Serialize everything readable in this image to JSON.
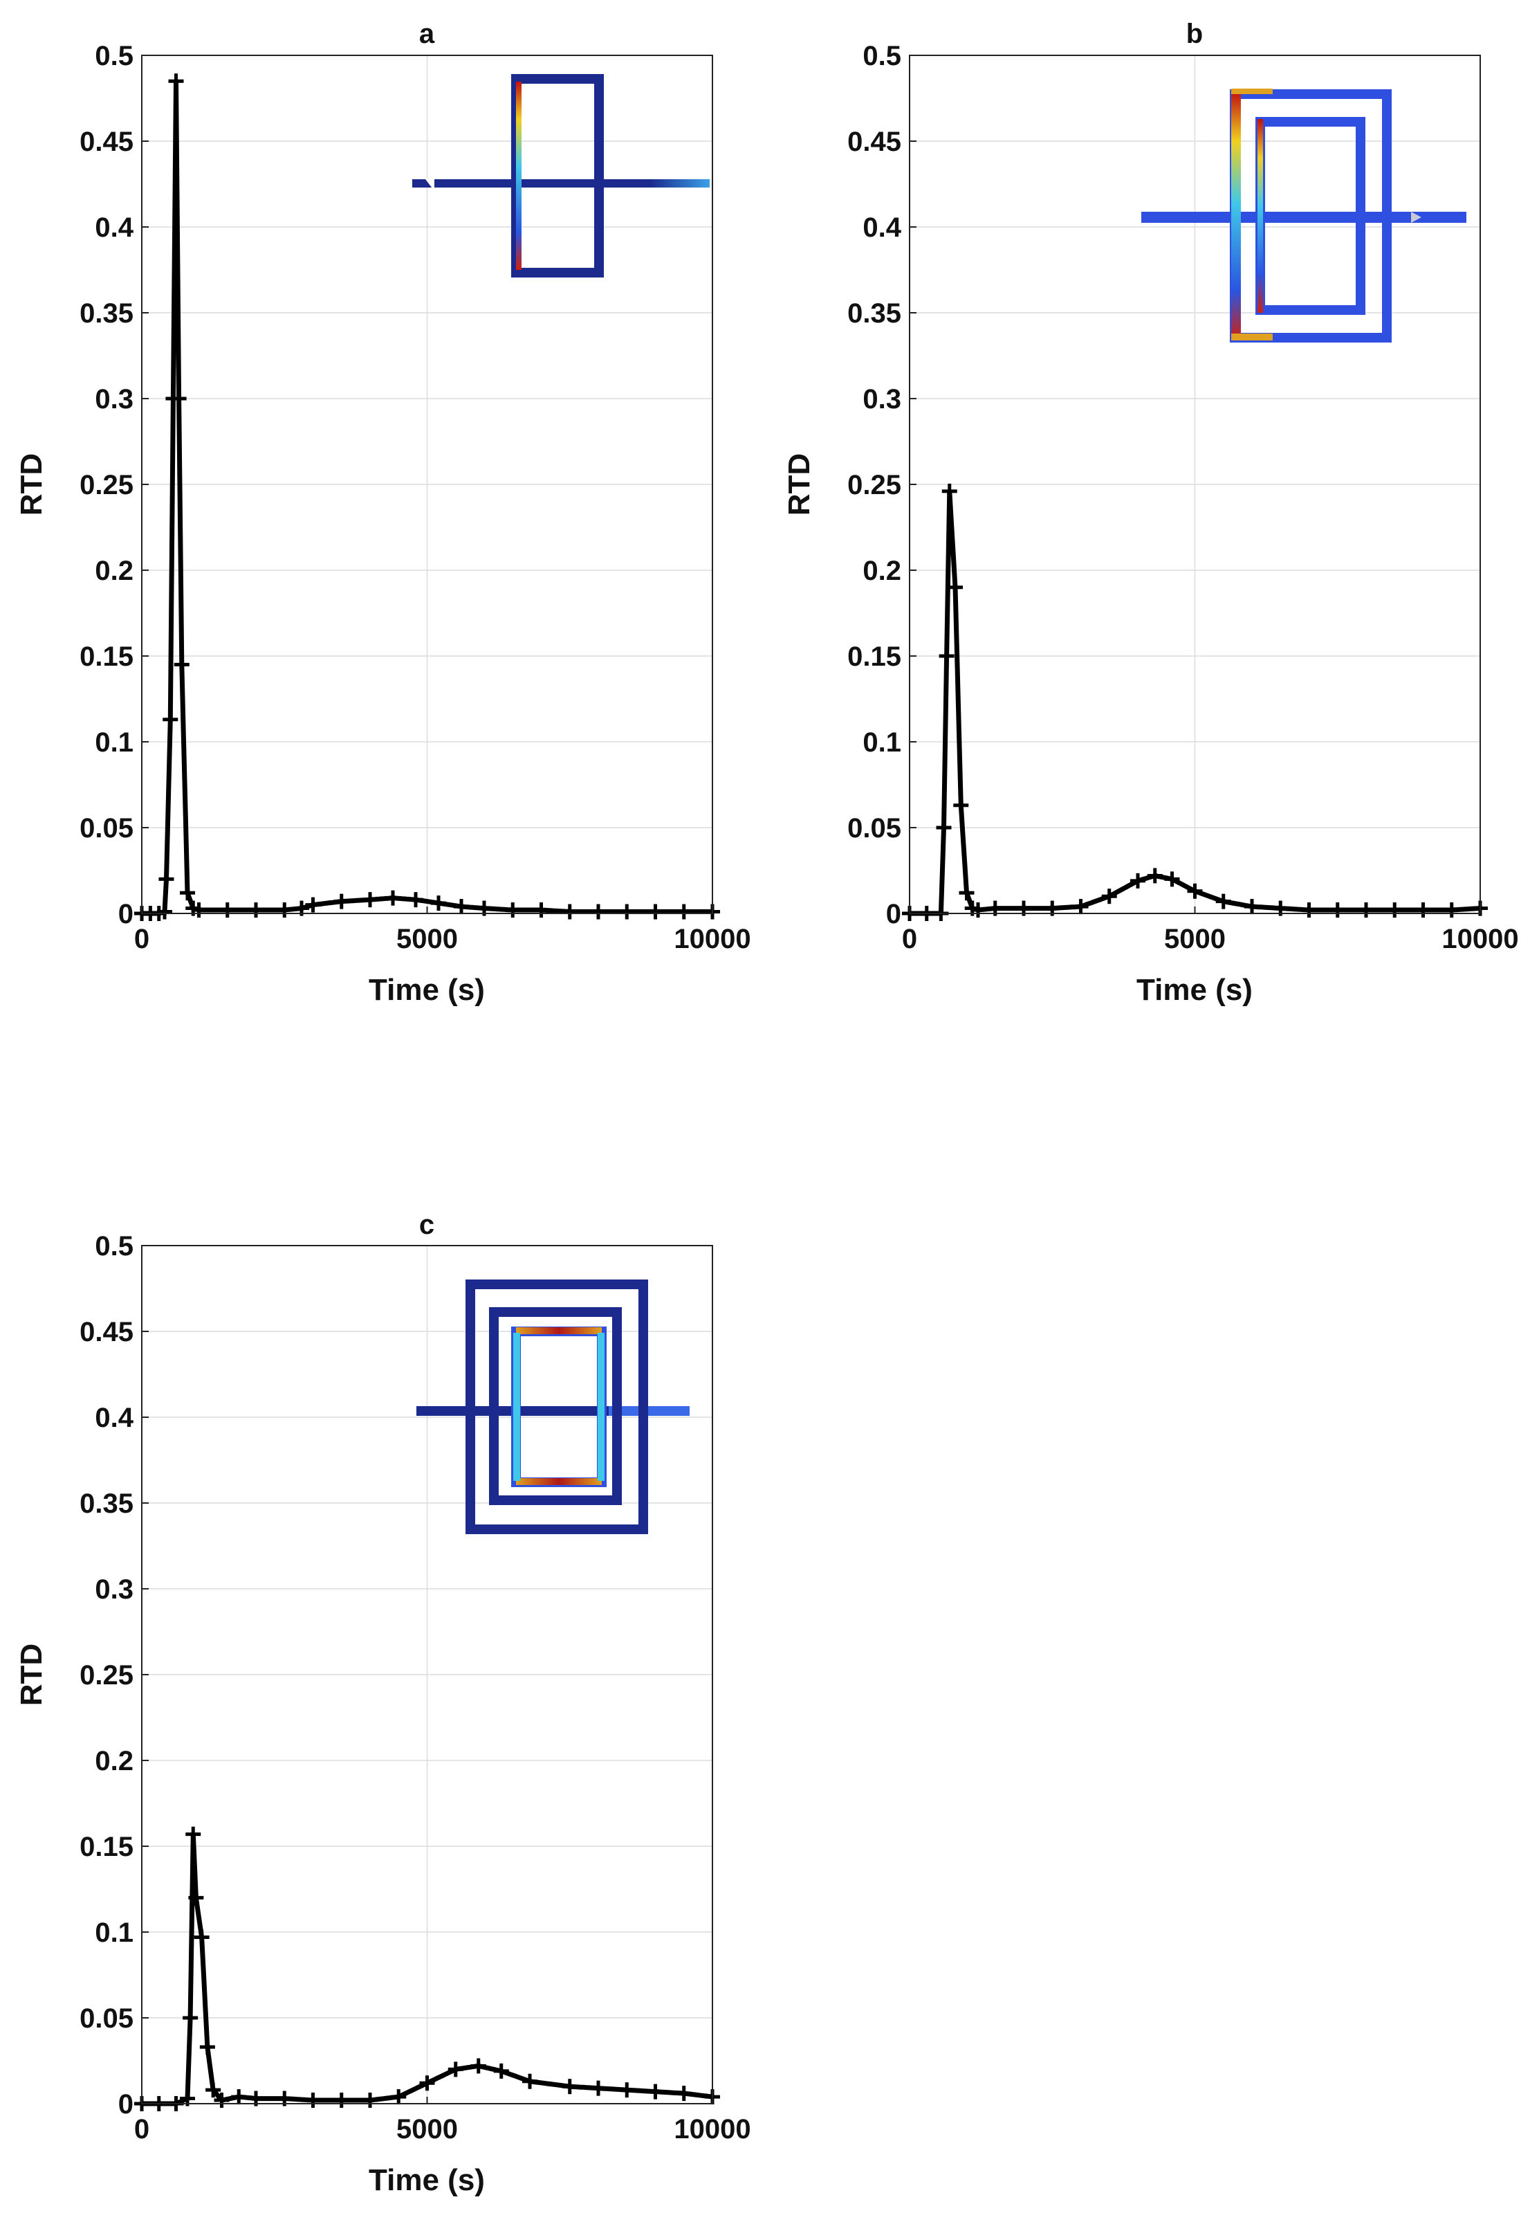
{
  "chart_data": [
    {
      "type": "line",
      "title": "a",
      "xlabel": "Time (s)",
      "ylabel": "RTD",
      "xlim": [
        0,
        10000
      ],
      "ylim": [
        0,
        0.5
      ],
      "xticks": [
        0,
        5000,
        10000
      ],
      "yticks": [
        0,
        0.05,
        0.1,
        0.15,
        0.2,
        0.25,
        0.3,
        0.35,
        0.4,
        0.45,
        0.5
      ],
      "grid": true,
      "line_color": "#000000",
      "marker": "plus",
      "series": [
        {
          "x": [
            0,
            150,
            300,
            400,
            430,
            500,
            550,
            600,
            650,
            700,
            800,
            900,
            1000,
            1500,
            2000,
            2500,
            2800,
            3000,
            3500,
            4000,
            4400,
            4800,
            5200,
            5600,
            6000,
            6500,
            7000,
            7500,
            8000,
            8500,
            9000,
            9500,
            10000
          ],
          "y": [
            0,
            0,
            0,
            0.001,
            0.02,
            0.113,
            0.3,
            0.485,
            0.3,
            0.145,
            0.012,
            0.003,
            0.002,
            0.002,
            0.002,
            0.002,
            0.003,
            0.005,
            0.007,
            0.008,
            0.009,
            0.008,
            0.006,
            0.004,
            0.003,
            0.002,
            0.002,
            0.001,
            0.001,
            0.001,
            0.001,
            0.001,
            0.001
          ]
        }
      ]
    },
    {
      "type": "line",
      "title": "b",
      "xlabel": "Time (s)",
      "ylabel": "RTD",
      "xlim": [
        0,
        10000
      ],
      "ylim": [
        0,
        0.5
      ],
      "xticks": [
        0,
        5000,
        10000
      ],
      "yticks": [
        0,
        0.05,
        0.1,
        0.15,
        0.2,
        0.25,
        0.3,
        0.35,
        0.4,
        0.45,
        0.5
      ],
      "grid": true,
      "line_color": "#000000",
      "marker": "plus",
      "series": [
        {
          "x": [
            0,
            300,
            550,
            600,
            650,
            700,
            800,
            900,
            1000,
            1100,
            1200,
            1500,
            2000,
            2500,
            3000,
            3500,
            4000,
            4300,
            4600,
            5000,
            5500,
            6000,
            6500,
            7000,
            7500,
            8000,
            8500,
            9000,
            9500,
            10000
          ],
          "y": [
            0,
            0,
            0,
            0.05,
            0.15,
            0.246,
            0.19,
            0.063,
            0.012,
            0.003,
            0.002,
            0.003,
            0.003,
            0.003,
            0.004,
            0.01,
            0.019,
            0.022,
            0.02,
            0.013,
            0.007,
            0.004,
            0.003,
            0.002,
            0.002,
            0.002,
            0.002,
            0.002,
            0.002,
            0.003
          ]
        }
      ]
    },
    {
      "type": "line",
      "title": "c",
      "xlabel": "Time (s)",
      "ylabel": "RTD",
      "xlim": [
        0,
        10000
      ],
      "ylim": [
        0,
        0.5
      ],
      "xticks": [
        0,
        5000,
        10000
      ],
      "yticks": [
        0,
        0.05,
        0.1,
        0.15,
        0.2,
        0.25,
        0.3,
        0.35,
        0.4,
        0.45,
        0.5
      ],
      "grid": true,
      "line_color": "#000000",
      "marker": "plus",
      "series": [
        {
          "x": [
            0,
            300,
            600,
            800,
            850,
            900,
            950,
            1050,
            1150,
            1250,
            1400,
            1700,
            2000,
            2500,
            3000,
            3500,
            4000,
            4500,
            5000,
            5500,
            5900,
            6300,
            6800,
            7500,
            8000,
            8500,
            9000,
            9500,
            10000
          ],
          "y": [
            0,
            0,
            0,
            0.003,
            0.05,
            0.157,
            0.12,
            0.097,
            0.033,
            0.008,
            0.002,
            0.004,
            0.003,
            0.003,
            0.002,
            0.002,
            0.002,
            0.004,
            0.012,
            0.02,
            0.022,
            0.019,
            0.013,
            0.01,
            0.009,
            0.008,
            0.007,
            0.006,
            0.004
          ]
        }
      ]
    }
  ]
}
